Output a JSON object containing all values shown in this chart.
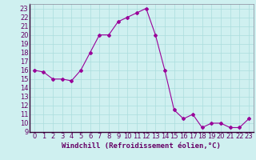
{
  "x": [
    0,
    1,
    2,
    3,
    4,
    5,
    6,
    7,
    8,
    9,
    10,
    11,
    12,
    13,
    14,
    15,
    16,
    17,
    18,
    19,
    20,
    21,
    22,
    23
  ],
  "y": [
    16,
    15.8,
    15,
    15,
    14.8,
    16,
    18,
    20,
    20,
    21.5,
    22,
    22.5,
    23,
    20,
    16,
    11.5,
    10.5,
    11,
    9.5,
    10,
    10,
    9.5,
    9.5,
    10.5
  ],
  "line_color": "#990099",
  "marker": "D",
  "marker_size": 2,
  "bg_color": "#cff0f0",
  "grid_color": "#aadddd",
  "xlabel": "Windchill (Refroidissement éolien,°C)",
  "xlabel_fontsize": 6.5,
  "tick_fontsize": 6,
  "ylim": [
    9,
    23.5
  ],
  "xlim": [
    -0.5,
    23.5
  ],
  "yticks": [
    9,
    10,
    11,
    12,
    13,
    14,
    15,
    16,
    17,
    18,
    19,
    20,
    21,
    22,
    23
  ],
  "xticks": [
    0,
    1,
    2,
    3,
    4,
    5,
    6,
    7,
    8,
    9,
    10,
    11,
    12,
    13,
    14,
    15,
    16,
    17,
    18,
    19,
    20,
    21,
    22,
    23
  ]
}
